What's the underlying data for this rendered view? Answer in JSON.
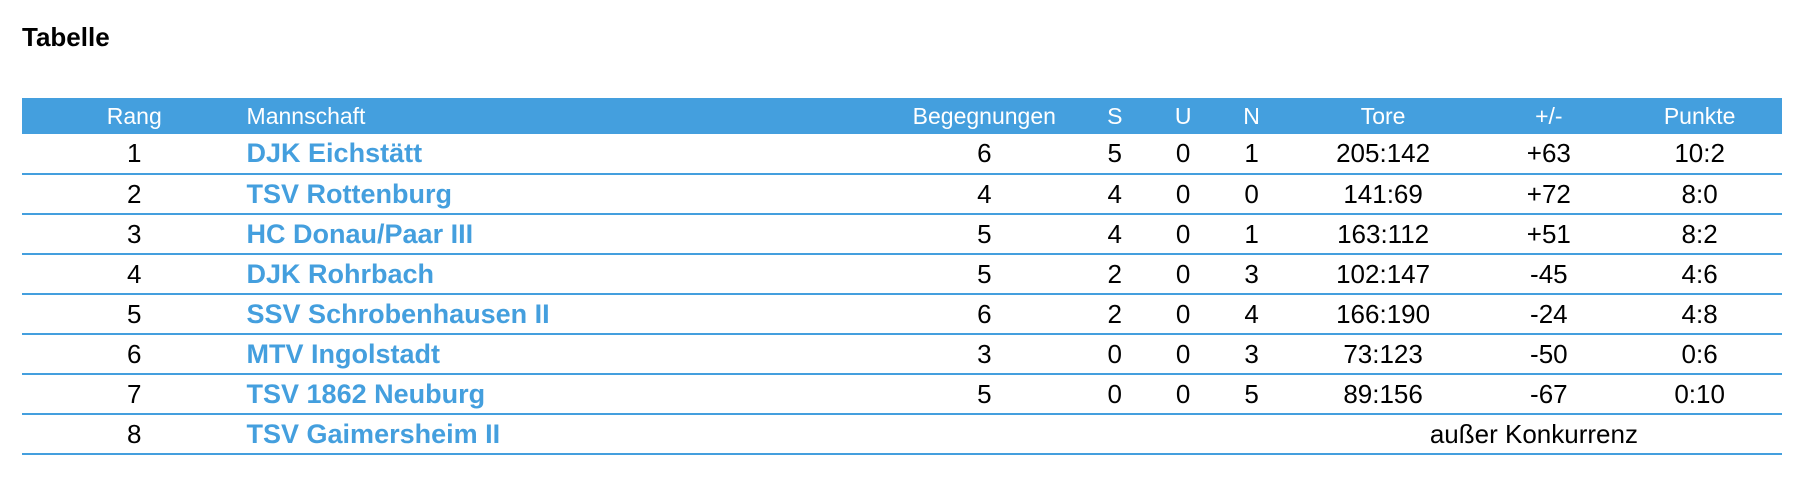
{
  "title": "Tabelle",
  "table": {
    "headers": {
      "rank": "Rang",
      "team": "Mannschaft",
      "games": "Begegnungen",
      "s": "S",
      "u": "U",
      "n": "N",
      "goals": "Tore",
      "diff": "+/-",
      "points": "Punkte"
    },
    "rows": [
      {
        "rank": "1",
        "team": "DJK Eichstätt",
        "games": "6",
        "s": "5",
        "u": "0",
        "n": "1",
        "goals": "205:142",
        "diff": "+63",
        "points": "10:2"
      },
      {
        "rank": "2",
        "team": "TSV Rottenburg",
        "games": "4",
        "s": "4",
        "u": "0",
        "n": "0",
        "goals": "141:69",
        "diff": "+72",
        "points": "8:0"
      },
      {
        "rank": "3",
        "team": "HC Donau/Paar III",
        "games": "5",
        "s": "4",
        "u": "0",
        "n": "1",
        "goals": "163:112",
        "diff": "+51",
        "points": "8:2"
      },
      {
        "rank": "4",
        "team": "DJK Rohrbach",
        "games": "5",
        "s": "2",
        "u": "0",
        "n": "3",
        "goals": "102:147",
        "diff": "-45",
        "points": "4:6"
      },
      {
        "rank": "5",
        "team": "SSV Schrobenhausen II",
        "games": "6",
        "s": "2",
        "u": "0",
        "n": "4",
        "goals": "166:190",
        "diff": "-24",
        "points": "4:8"
      },
      {
        "rank": "6",
        "team": "MTV Ingolstadt",
        "games": "3",
        "s": "0",
        "u": "0",
        "n": "3",
        "goals": "73:123",
        "diff": "-50",
        "points": "0:6"
      },
      {
        "rank": "7",
        "team": "TSV 1862 Neuburg",
        "games": "5",
        "s": "0",
        "u": "0",
        "n": "5",
        "goals": "89:156",
        "diff": "-67",
        "points": "0:10"
      },
      {
        "rank": "8",
        "team": "TSV Gaimersheim II",
        "note": "außer Konkurrenz"
      }
    ]
  },
  "colors": {
    "accent": "#449fde",
    "header_text": "#ffffff",
    "body_text": "#000000"
  }
}
